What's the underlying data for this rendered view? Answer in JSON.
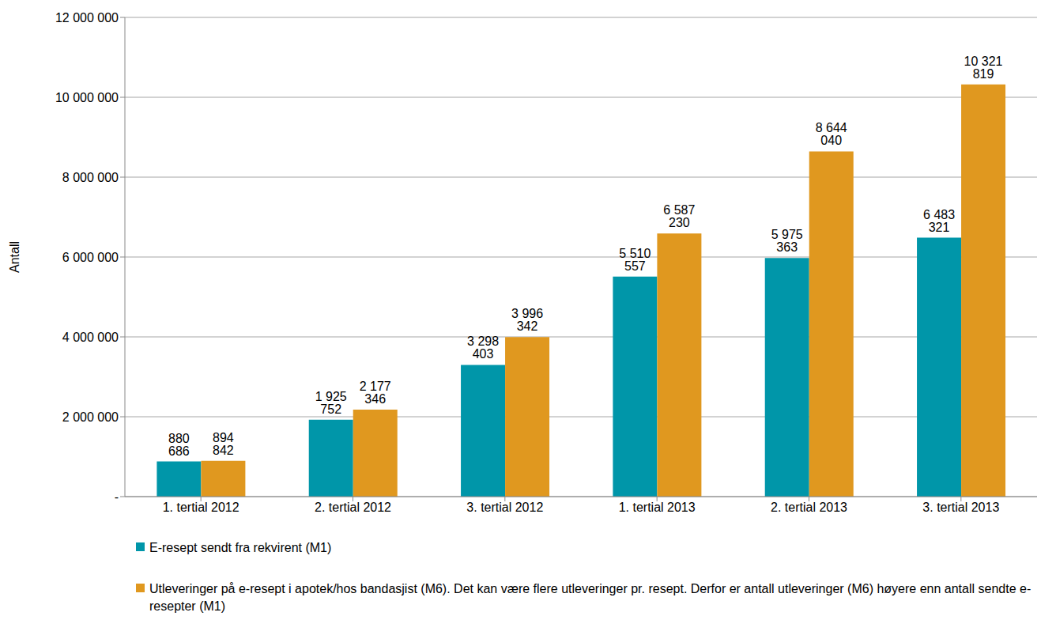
{
  "chart_data": {
    "type": "bar",
    "y_label": "Antall",
    "categories": [
      "1. tertial 2012",
      "2. tertial 2012",
      "3. tertial 2012",
      "1. tertial 2013",
      "2. tertial 2013",
      "3. tertial 2013"
    ],
    "series": [
      {
        "name": "E-resept sendt fra rekvirent (M1)",
        "color": "#0096a9",
        "values": [
          880686,
          1925752,
          3298403,
          5510557,
          5975363,
          6483321
        ],
        "value_labels": [
          "880 686",
          "1 925 752",
          "3 298 403",
          "5 510 557",
          "5 975 363",
          "6 483 321"
        ]
      },
      {
        "name": "Utleveringer på e-resept i apotek/hos bandasjist (M6). Det kan være flere utleveringer pr. resept. Derfor er antall utleveringer (M6) høyere enn antall sendte e-resepter (M1)",
        "color": "#e0981f",
        "values": [
          894842,
          2177346,
          3996342,
          6587230,
          8644040,
          10321819
        ],
        "value_labels": [
          "894 842",
          "2 177 346",
          "3 996 342",
          "6 587 230",
          "8 644 040",
          "10 321 819"
        ]
      }
    ],
    "ylim": [
      0,
      12000000
    ],
    "yticks": [
      {
        "value": 0,
        "label": "-"
      },
      {
        "value": 2000000,
        "label": "2 000 000"
      },
      {
        "value": 4000000,
        "label": "4 000 000"
      },
      {
        "value": 6000000,
        "label": "6 000 000"
      },
      {
        "value": 8000000,
        "label": "8 000 000"
      },
      {
        "value": 10000000,
        "label": "10 000 000"
      },
      {
        "value": 12000000,
        "label": "12 000 000"
      }
    ],
    "grid": true,
    "legend": "bottom",
    "data_labels": true
  }
}
